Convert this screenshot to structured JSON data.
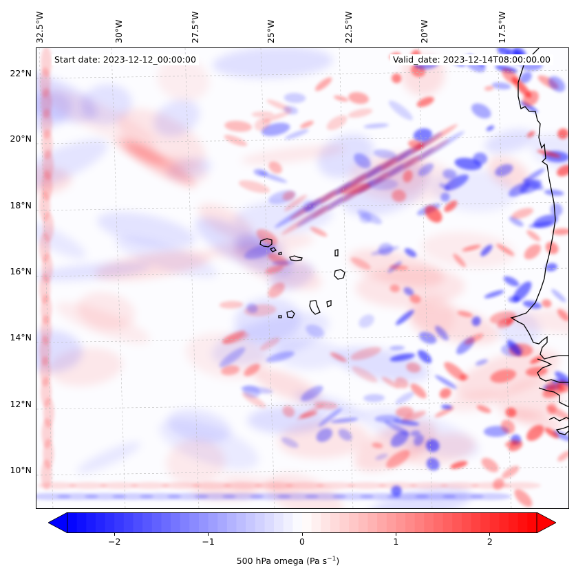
{
  "map": {
    "start_date": "Start date: 2023-12-12_00:00:00",
    "valid_date": "Valid_date: 2023-12-14T08:00:00.00",
    "lon_labels": [
      "32.5°W",
      "30°W",
      "27.5°W",
      "25°W",
      "22.5°W",
      "20°W",
      "17.5°W"
    ],
    "lat_labels": [
      "22°N",
      "20°N",
      "18°N",
      "16°N",
      "14°N",
      "12°N",
      "10°N"
    ],
    "field_colors": {
      "negative": "#0000ff",
      "neutral": "#ffffff",
      "positive": "#ff0000",
      "coastline": "#000000"
    }
  },
  "colorbar": {
    "ticks": [
      "−2",
      "−1",
      "0",
      "1",
      "2"
    ],
    "tick_values": [
      -2,
      -1,
      0,
      1,
      2
    ],
    "range": [
      -2.5,
      2.5
    ],
    "label": "500 hPa omega (Pa s",
    "label_sup": "−1",
    "label_end": ")"
  }
}
